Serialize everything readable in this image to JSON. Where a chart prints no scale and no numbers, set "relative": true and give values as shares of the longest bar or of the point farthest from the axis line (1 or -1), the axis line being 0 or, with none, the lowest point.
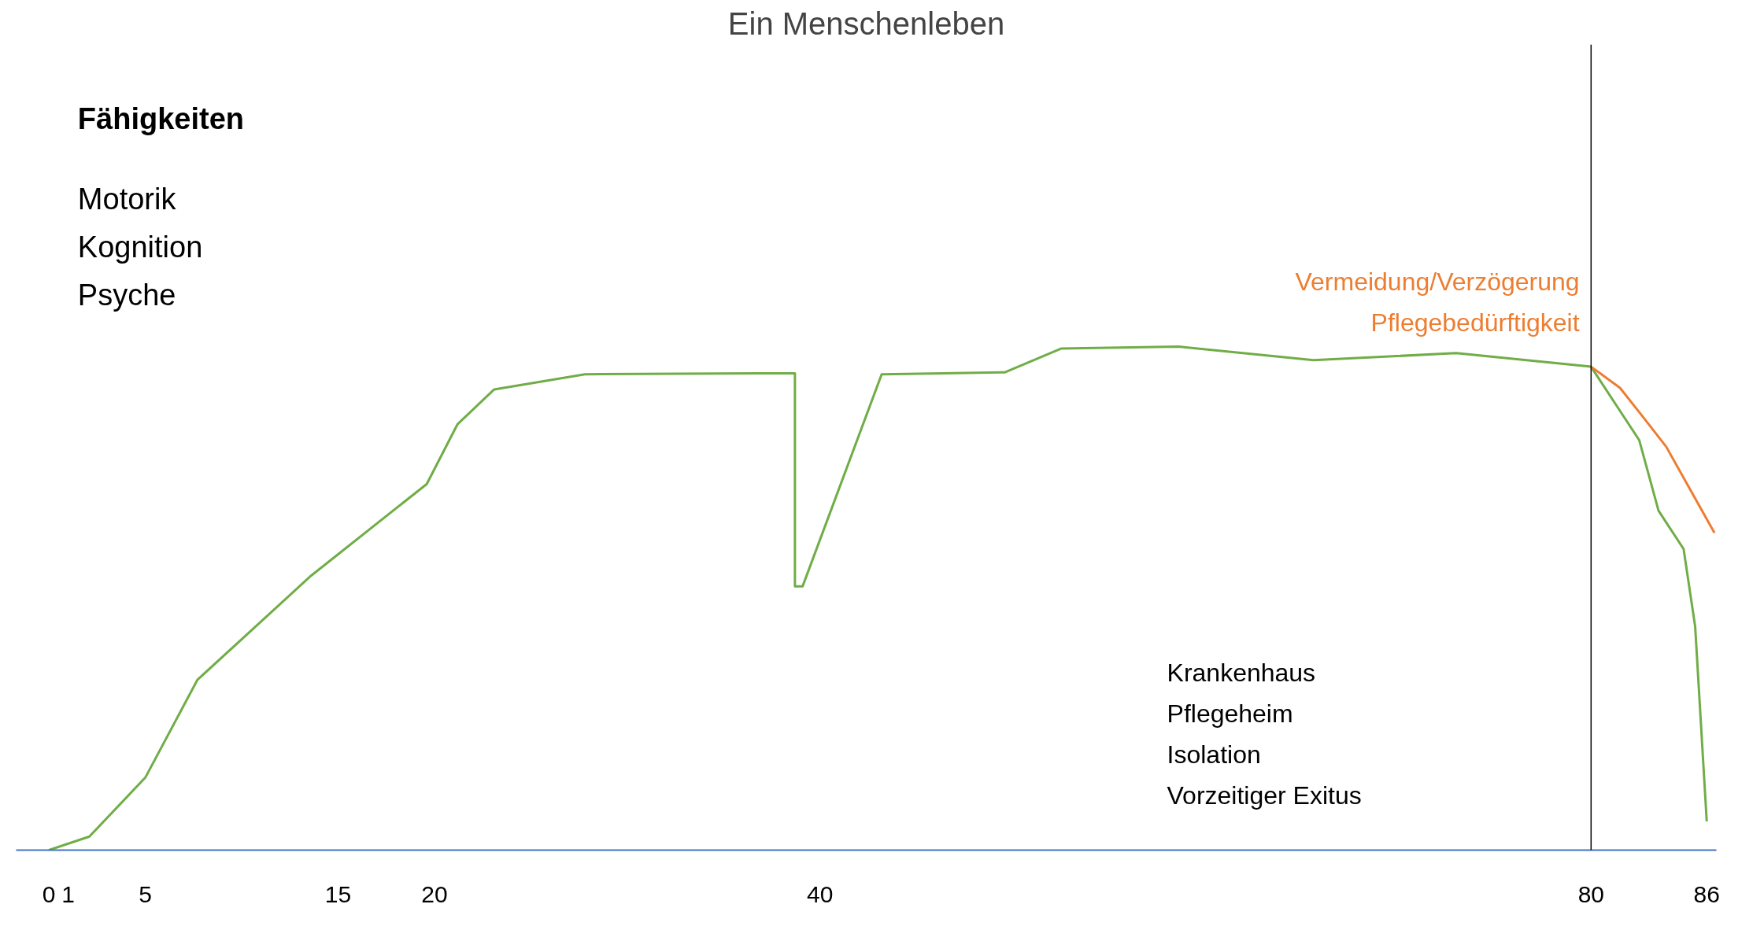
{
  "chart_data": {
    "type": "line",
    "title": "Ein Menschenleben",
    "relative": true,
    "xlim": [
      -1.7,
      86.5
    ],
    "xticks": [
      0,
      1,
      5,
      15,
      20,
      40,
      80,
      86
    ],
    "series": [
      {
        "color": "#70ad47",
        "x": [
          0,
          2.1,
          5,
          7.7,
          13.6,
          19.6,
          21.2,
          23.1,
          27.8,
          36.8,
          38.7,
          38.7,
          39.1,
          43.2,
          46.4,
          49.6,
          52.5,
          58.6,
          65.6,
          73.0,
          80,
          81.3,
          82.5,
          83.5,
          84.8,
          85.4,
          86
        ],
        "values": [
          0,
          0.027,
          0.144,
          0.338,
          0.545,
          0.727,
          0.846,
          0.915,
          0.945,
          0.947,
          0.947,
          0.524,
          0.524,
          0.945,
          0.947,
          0.949,
          0.996,
          1,
          0.973,
          0.987,
          0.96,
          0.884,
          0.814,
          0.674,
          0.598,
          0.444,
          0.057
        ]
      },
      {
        "name": "Vermeidung/Verzögerung\nPflegebedürftigkeit",
        "color": "#ed7d31",
        "x": [
          80,
          81.5,
          82.7,
          83.9,
          85.2,
          86.4
        ],
        "values": [
          0.96,
          0.918,
          0.86,
          0.801,
          0.712,
          0.63
        ]
      }
    ],
    "ref_lines": [
      {
        "axis": "x",
        "value": 80,
        "color": "#000000"
      }
    ],
    "annotations": [
      "Fähigkeiten",
      "Motorik\nKognition\nPsyche",
      "Krankenhaus\nPflegeheim\nIsolation\nVorzeitiger Exitus"
    ],
    "grid": false,
    "marker": "none",
    "line_style": "solid"
  }
}
